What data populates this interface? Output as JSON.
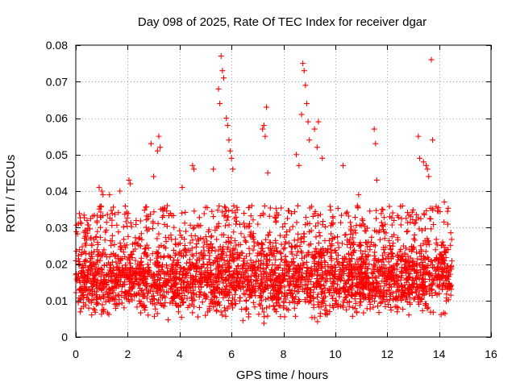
{
  "chart_data": {
    "type": "scatter",
    "title": "Day 098 of 2025, Rate Of TEC Index for receiver dgar",
    "xlabel": "GPS time / hours",
    "ylabel": "ROTI / TECUs",
    "xlim": [
      0,
      16
    ],
    "ylim": [
      0,
      0.08
    ],
    "xticks": [
      0,
      2,
      4,
      6,
      8,
      10,
      12,
      14,
      16
    ],
    "xtick_labels": [
      "0",
      "2",
      "4",
      "6",
      "8",
      "10",
      "12",
      "14",
      "16"
    ],
    "yticks": [
      0,
      0.01,
      0.02,
      0.03,
      0.04,
      0.05,
      0.06,
      0.07,
      0.08
    ],
    "ytick_labels": [
      "0",
      "0.01",
      "0.02",
      "0.03",
      "0.04",
      "0.05",
      "0.06",
      "0.07",
      "0.08"
    ],
    "grid": true,
    "marker": "+",
    "color": "#ff0000",
    "series": [
      {
        "name": "ROTI",
        "bulk_band": {
          "x_range": [
            0.0,
            14.5
          ],
          "y_range": [
            0.003,
            0.027
          ],
          "approx_points": 2600
        },
        "x": [
          0.9,
          1.0,
          1.05,
          1.3,
          1.7,
          2.05,
          2.1,
          2.9,
          3.0,
          3.15,
          3.2,
          3.25,
          3.4,
          4.1,
          4.5,
          4.55,
          5.3,
          5.5,
          5.55,
          5.6,
          5.65,
          5.7,
          5.8,
          5.85,
          5.9,
          5.95,
          6.0,
          6.05,
          7.2,
          7.25,
          7.3,
          7.35,
          7.4,
          8.5,
          8.6,
          8.7,
          8.75,
          8.8,
          8.85,
          8.9,
          8.95,
          9.0,
          9.2,
          9.3,
          9.35,
          9.5,
          10.3,
          10.9,
          11.5,
          11.55,
          11.6,
          11.8,
          13.2,
          13.25,
          13.4,
          13.5,
          13.55,
          13.6,
          13.7,
          13.75,
          14.2,
          14.35
        ],
        "y": [
          0.041,
          0.04,
          0.039,
          0.039,
          0.04,
          0.043,
          0.042,
          0.053,
          0.044,
          0.051,
          0.055,
          0.052,
          0.035,
          0.041,
          0.047,
          0.046,
          0.046,
          0.068,
          0.064,
          0.077,
          0.073,
          0.071,
          0.06,
          0.058,
          0.054,
          0.051,
          0.049,
          0.046,
          0.057,
          0.058,
          0.055,
          0.063,
          0.045,
          0.05,
          0.047,
          0.061,
          0.075,
          0.073,
          0.069,
          0.064,
          0.059,
          0.054,
          0.057,
          0.052,
          0.059,
          0.049,
          0.047,
          0.039,
          0.057,
          0.053,
          0.043,
          0.035,
          0.055,
          0.049,
          0.048,
          0.047,
          0.046,
          0.044,
          0.076,
          0.054,
          0.037,
          0.024
        ]
      }
    ]
  }
}
